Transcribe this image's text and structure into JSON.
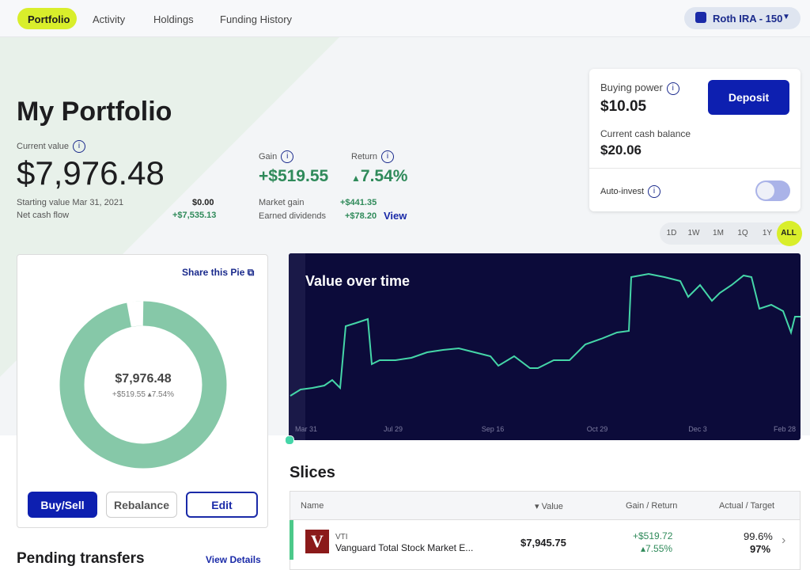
{
  "nav": {
    "tabs": [
      "Portfolio",
      "Activity",
      "Holdings",
      "Funding History"
    ],
    "account": "Roth IRA - 150"
  },
  "header": {
    "title": "My Portfolio",
    "current_value_label": "Current value",
    "current_value": "$7,976.48",
    "starting_label": "Starting value Mar 31, 2021",
    "starting_value": "$0.00",
    "net_cash_label": "Net cash flow",
    "net_cash": "+$7,535.13",
    "gain_label": "Gain",
    "gain": "+$519.55",
    "return_label": "Return",
    "return": "7.54%",
    "market_gain_label": "Market gain",
    "market_gain": "+$441.35",
    "dividends_label": "Earned dividends",
    "dividends": "+$78.20",
    "view": "View"
  },
  "cash_card": {
    "buying_power_label": "Buying power",
    "buying_power": "$10.05",
    "deposit": "Deposit",
    "cash_label": "Current cash balance",
    "cash": "$20.06",
    "auto_invest": "Auto-invest"
  },
  "ranges": [
    "1D",
    "1W",
    "1M",
    "1Q",
    "1Y",
    "ALL"
  ],
  "pie": {
    "share": "Share this Pie",
    "value": "$7,976.48",
    "gain": "+$519.55",
    "return": "7.54%",
    "buttons": [
      "Buy/Sell",
      "Rebalance",
      "Edit"
    ]
  },
  "chart": {
    "title": "Value over time",
    "x_labels": [
      "Mar 31",
      "Jul 29",
      "Sep 16",
      "Oct 29",
      "Dec 3",
      "Feb 28"
    ]
  },
  "slices": {
    "title": "Slices",
    "columns": [
      "Name",
      "Value",
      "Gain / Return",
      "Actual / Target"
    ],
    "rows": [
      {
        "ticker": "VTI",
        "name": "Vanguard Total Stock Market E...",
        "value": "$7,945.75",
        "gain": "+$519.72",
        "return": "7.55%",
        "actual": "99.6%",
        "target": "97%"
      }
    ]
  },
  "pending": {
    "title": "Pending transfers",
    "link": "View Details"
  }
}
